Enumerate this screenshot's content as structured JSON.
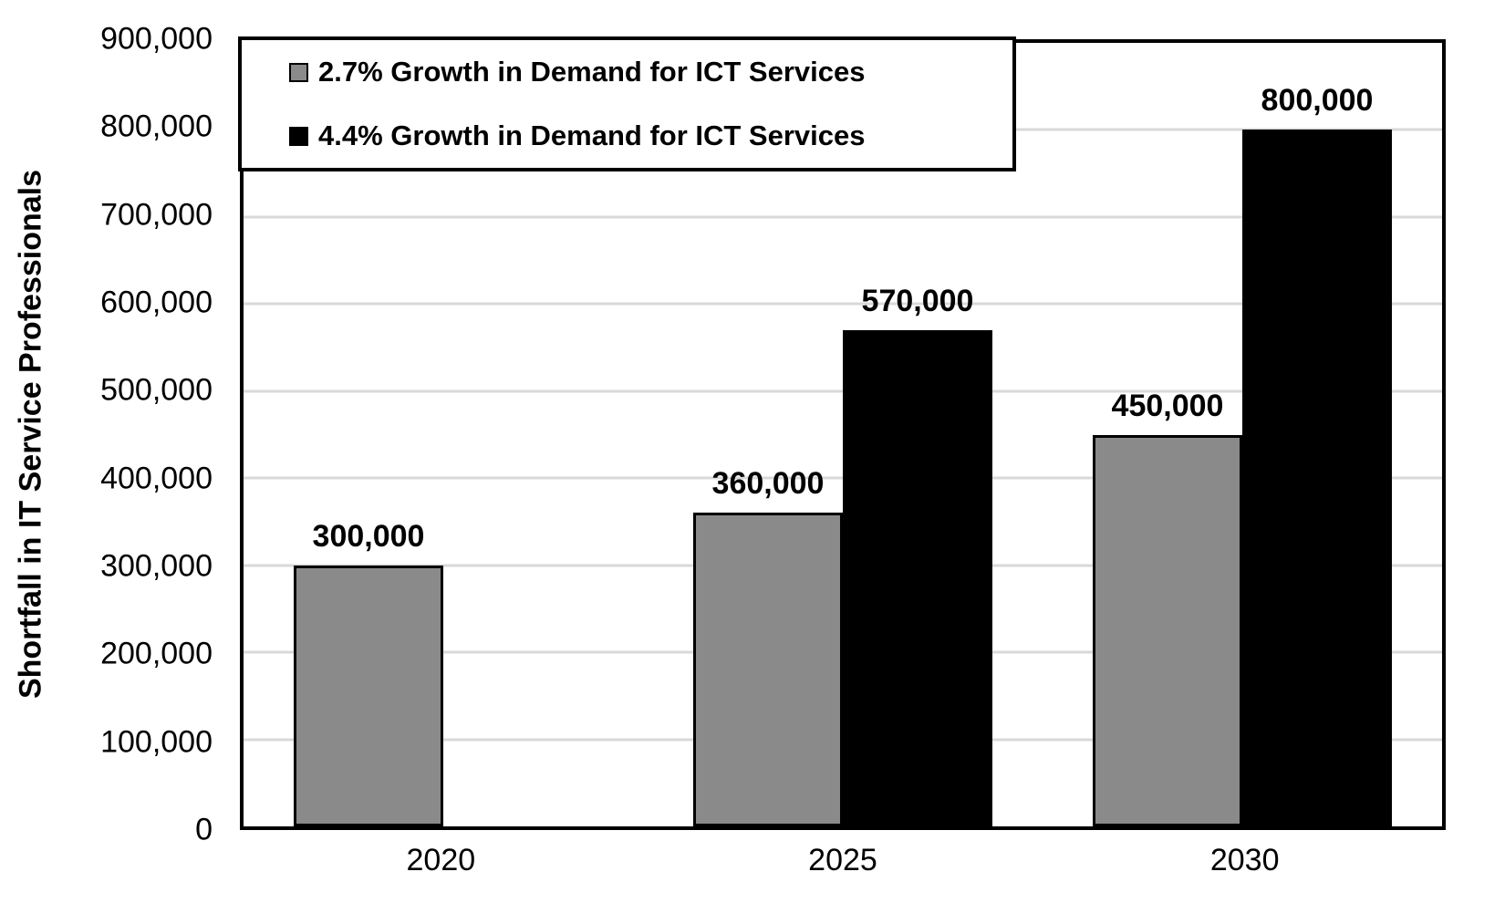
{
  "chart_data": {
    "type": "bar",
    "title": "",
    "ylabel": "Shortfall in IT Service Professionals",
    "xlabel": "",
    "categories": [
      "2020",
      "2025",
      "2030"
    ],
    "series": [
      {
        "name": "2.7% Growth in Demand for ICT Services",
        "color": "#8a8a8a",
        "values": [
          300000,
          360000,
          450000
        ],
        "data_labels": [
          "300,000",
          "360,000",
          "450,000"
        ]
      },
      {
        "name": "4.4% Growth in Demand for ICT Services",
        "color": "#000000",
        "values": [
          null,
          570000,
          800000
        ],
        "data_labels": [
          null,
          "570,000",
          "800,000"
        ]
      }
    ],
    "ylim": [
      0,
      900000
    ],
    "ytick_step": 100000,
    "ytick_labels": [
      "0",
      "100,000",
      "200,000",
      "300,000",
      "400,000",
      "500,000",
      "600,000",
      "700,000",
      "800,000",
      "900,000"
    ],
    "grid": true,
    "gridline_color": "#d9d9d9",
    "legend_position": "top-left",
    "bar_width_pct": 12.48
  }
}
